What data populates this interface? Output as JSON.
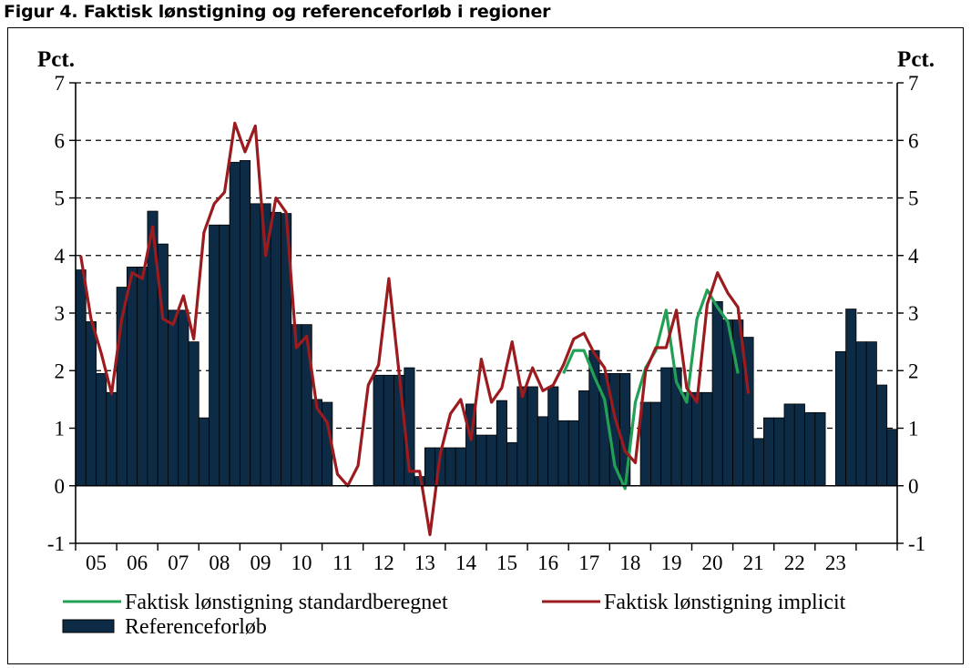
{
  "figure_title": "Figur 4. Faktisk lønstigning og referenceforløb i regioner",
  "colors": {
    "bars": "#0d2b45",
    "green": "#22a055",
    "red": "#9b1b1e",
    "grid": "#000000"
  },
  "chart_data": {
    "type": "bar",
    "title": "Figur 4. Faktisk lønstigning og referenceforløb i regioner",
    "ylabel_left": "Pct.",
    "ylabel_right": "Pct.",
    "ylim": [
      -1,
      7
    ],
    "yticks": [
      "-1",
      "0",
      "1",
      "2",
      "3",
      "4",
      "5",
      "6",
      "7"
    ],
    "x_period": {
      "start_year": 2005,
      "start_quarter": 1,
      "end_year": 2024,
      "end_quarter": 4
    },
    "year_labels": [
      "05",
      "06",
      "07",
      "08",
      "09",
      "10",
      "11",
      "12",
      "13",
      "14",
      "15",
      "16",
      "17",
      "18",
      "19",
      "20",
      "21",
      "22",
      "23"
    ],
    "grid": "horizontal dashed",
    "legend": {
      "green": "Faktisk lønstigning standardberegnet",
      "red": "Faktisk lønstigning implicit",
      "bars": "Referenceforløb"
    },
    "series": [
      {
        "name": "Referenceforløb",
        "kind": "bar",
        "values": [
          3.75,
          2.85,
          1.95,
          1.62,
          3.45,
          3.8,
          3.8,
          4.77,
          4.2,
          3.05,
          3.05,
          2.5,
          1.18,
          4.53,
          4.53,
          5.62,
          5.65,
          4.9,
          4.9,
          4.75,
          4.73,
          2.8,
          2.8,
          1.5,
          1.45,
          0,
          0,
          0,
          0,
          1.92,
          1.92,
          1.92,
          2.05,
          0.16,
          0.66,
          0.66,
          0.66,
          0.66,
          1.42,
          0.88,
          0.88,
          1.48,
          0.75,
          1.72,
          1.72,
          1.2,
          1.72,
          1.13,
          1.13,
          1.65,
          2.35,
          1.95,
          1.95,
          1.95,
          0,
          1.45,
          1.45,
          2.05,
          2.05,
          1.62,
          1.62,
          1.62,
          3.2,
          2.88,
          2.88,
          2.58,
          0.82,
          1.18,
          1.18,
          1.42,
          1.42,
          1.27,
          1.27,
          0,
          2.33,
          3.07,
          2.5,
          2.5,
          1.75,
          0.98
        ]
      },
      {
        "name": "Faktisk lønstigning implicit",
        "kind": "line",
        "values": [
          4.0,
          2.9,
          2.3,
          1.6,
          2.9,
          3.7,
          3.6,
          4.5,
          2.9,
          2.8,
          3.3,
          2.55,
          4.4,
          4.9,
          5.1,
          6.3,
          5.8,
          6.25,
          4.0,
          5.0,
          4.75,
          2.4,
          2.6,
          1.35,
          1.1,
          0.2,
          0.0,
          0.35,
          1.75,
          2.1,
          3.6,
          1.95,
          0.25,
          0.25,
          -0.85,
          0.55,
          1.25,
          1.5,
          0.8,
          2.2,
          1.45,
          1.7,
          2.5,
          1.55,
          2.05,
          1.65,
          1.75,
          2.1,
          2.55,
          2.65,
          2.3,
          2.05,
          1.2,
          0.6,
          0.4,
          2.0,
          2.4,
          2.4,
          3.05,
          1.7,
          1.45,
          3.15,
          3.7,
          3.35,
          3.1,
          1.6
        ]
      },
      {
        "name": "Faktisk lønstigning standardberegnet",
        "kind": "line",
        "values": [
          null,
          null,
          null,
          null,
          null,
          null,
          null,
          null,
          null,
          null,
          null,
          null,
          null,
          null,
          null,
          null,
          null,
          null,
          null,
          null,
          null,
          null,
          null,
          null,
          null,
          null,
          null,
          null,
          null,
          null,
          null,
          null,
          null,
          null,
          null,
          null,
          null,
          null,
          null,
          null,
          null,
          null,
          null,
          null,
          null,
          null,
          null,
          1.95,
          2.35,
          2.35,
          1.9,
          1.5,
          0.35,
          -0.05,
          1.45,
          2.05,
          2.35,
          3.05,
          1.8,
          1.45,
          2.9,
          3.4,
          3.1,
          2.85,
          1.95
        ]
      }
    ]
  }
}
